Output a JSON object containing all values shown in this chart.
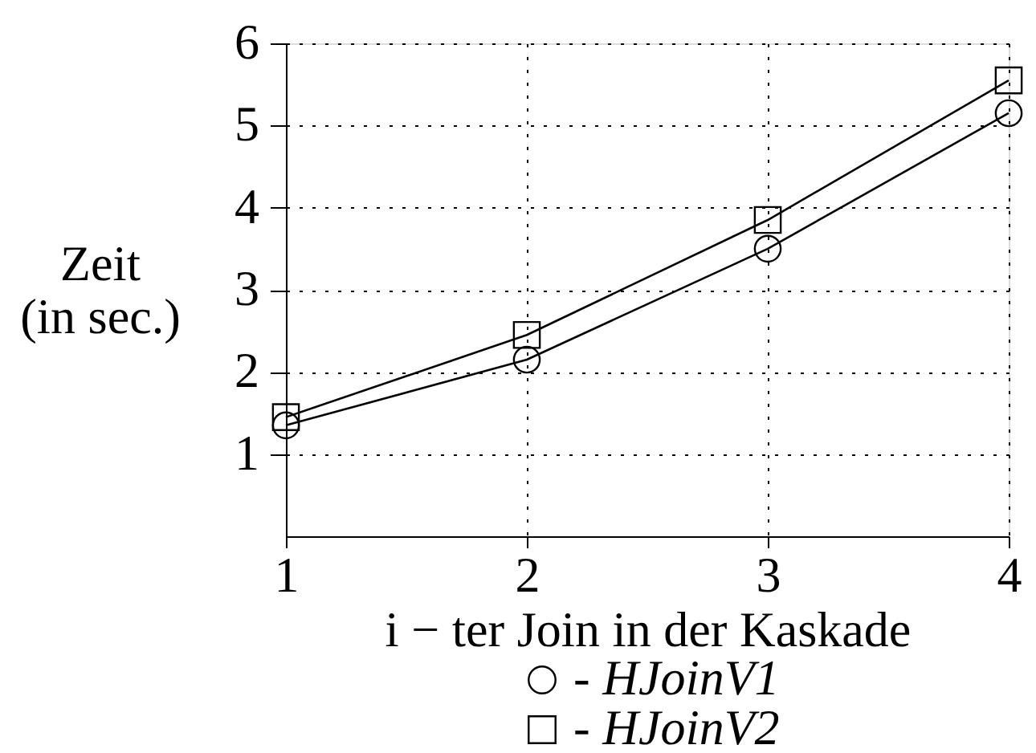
{
  "chart_data": {
    "type": "line",
    "xlabel": "i − ter Join in der Kaskade",
    "ylabel": "Zeit\n(in sec.)",
    "x": [
      1,
      2,
      3,
      4
    ],
    "series": [
      {
        "name": "- HJoinV1",
        "color": "#000000",
        "marker": "circle",
        "values": [
          1.35,
          2.15,
          3.5,
          5.15
        ]
      },
      {
        "name": "- HJoinV2",
        "color": "#000000",
        "marker": "square",
        "values": [
          1.45,
          2.45,
          3.85,
          5.55
        ]
      }
    ],
    "xlim": [
      1,
      4
    ],
    "xticks": [
      1,
      2,
      3,
      4
    ],
    "ylim": [
      0,
      6
    ],
    "yticks": [
      1,
      2,
      3,
      4,
      5,
      6
    ],
    "grid": true,
    "legend": "bottom",
    "line_style": "solid"
  }
}
